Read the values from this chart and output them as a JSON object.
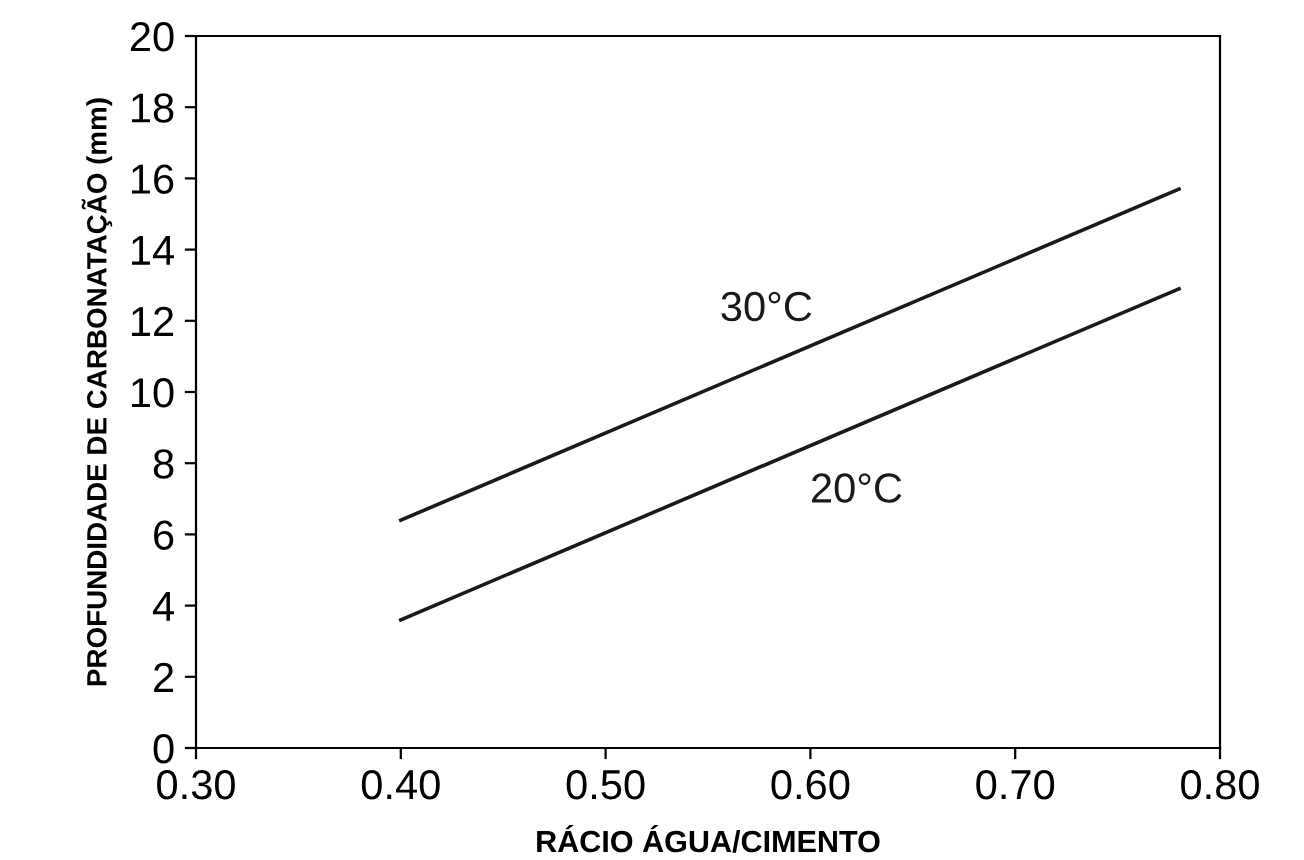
{
  "chart_data": {
    "type": "line",
    "xlabel": "RÁCIO ÁGUA/CIMENTO",
    "ylabel": "PROFUNDIDADE DE CARBONATAÇÃO (mm)",
    "series": [
      {
        "name": "30°C",
        "color": "#1a1a1a",
        "values": [
          6.4,
          15.7
        ]
      },
      {
        "name": "20°C",
        "color": "#1a1a1a",
        "values": [
          3.6,
          12.9
        ]
      }
    ],
    "x": [
      0.4,
      0.78
    ],
    "xlim": [
      0.3,
      0.8
    ],
    "xticks": [
      {
        "value": 0.3,
        "label": "0.30"
      },
      {
        "value": 0.4,
        "label": "0.40"
      },
      {
        "value": 0.5,
        "label": "0.50"
      },
      {
        "value": 0.6,
        "label": "0.60"
      },
      {
        "value": 0.7,
        "label": "0.70"
      },
      {
        "value": 0.8,
        "label": "0.80"
      }
    ],
    "ylim": [
      0,
      20
    ],
    "yticks": [
      0,
      2,
      4,
      6,
      8,
      10,
      12,
      14,
      16,
      18,
      20
    ],
    "grid": false,
    "legend": false,
    "marker": "none",
    "line_style": "solid"
  }
}
